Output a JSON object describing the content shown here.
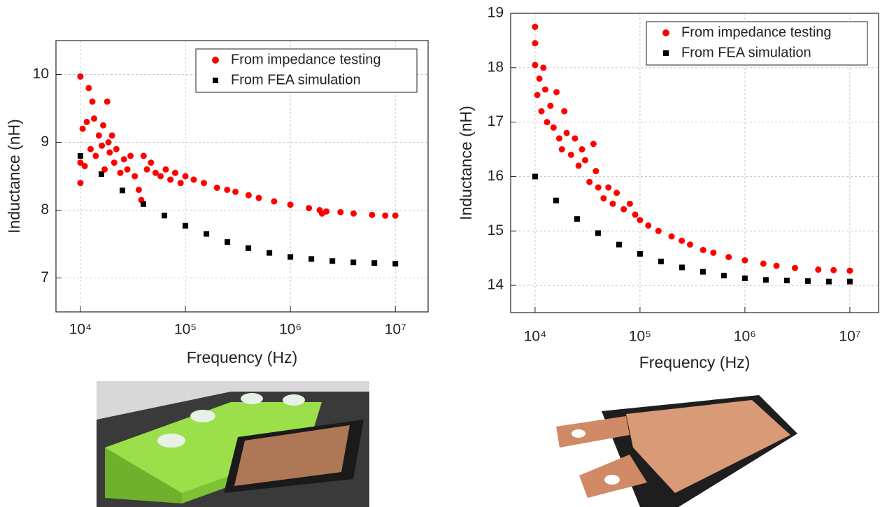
{
  "chart_data": [
    {
      "type": "scatter",
      "x_label": "Frequency (Hz)",
      "y_label": "Inductance (nH)",
      "xscale": "log",
      "xlim": [
        5850,
        20500000
      ],
      "xticks": [
        {
          "value": 10000,
          "label": "10⁴"
        },
        {
          "value": 100000,
          "label": "10⁵"
        },
        {
          "value": 1000000,
          "label": "10⁶"
        },
        {
          "value": 10000000,
          "label": "10⁷"
        }
      ],
      "ylim": [
        6.5,
        10.5
      ],
      "yticks": [
        7,
        8,
        9,
        10
      ],
      "grid": true,
      "legend": "upper right",
      "series": [
        {
          "name": "From impedance testing",
          "color": "#ff0000",
          "marker": "circle",
          "x": [
            10000,
            10000,
            10000,
            10500,
            11000,
            11500,
            12000,
            12500,
            13000,
            13500,
            14000,
            15000,
            16000,
            16500,
            17000,
            18000,
            18500,
            19000,
            20000,
            21000,
            22000,
            24000,
            26000,
            28000,
            30000,
            33000,
            36000,
            38000,
            40000,
            43000,
            47000,
            52000,
            58000,
            65000,
            72000,
            80000,
            90000,
            100000,
            120000,
            150000,
            200000,
            250000,
            300000,
            400000,
            500000,
            700000,
            1000000,
            1500000,
            1900000,
            2000000,
            2200000,
            3000000,
            4000000,
            6000000,
            8000000,
            10000000
          ],
          "values": [
            9.97,
            8.4,
            8.7,
            9.2,
            8.65,
            9.3,
            9.8,
            8.9,
            9.6,
            9.35,
            8.8,
            9.1,
            8.95,
            9.25,
            8.6,
            9.6,
            9.0,
            8.85,
            9.1,
            8.7,
            8.9,
            8.55,
            8.75,
            8.6,
            8.8,
            8.5,
            8.3,
            8.15,
            8.8,
            8.6,
            8.7,
            8.55,
            8.5,
            8.6,
            8.45,
            8.55,
            8.4,
            8.5,
            8.45,
            8.4,
            8.33,
            8.3,
            8.27,
            8.22,
            8.18,
            8.13,
            8.08,
            8.03,
            8.0,
            7.95,
            7.98,
            7.97,
            7.95,
            7.93,
            7.92,
            7.92
          ]
        },
        {
          "name": "From FEA simulation",
          "color": "#000000",
          "marker": "square",
          "x": [
            10000,
            15850,
            25120,
            39810,
            63100,
            100000,
            158500,
            251200,
            398100,
            631000,
            1000000,
            1585000,
            2512000,
            3981000,
            6310000,
            10000000
          ],
          "values": [
            8.8,
            8.53,
            8.29,
            8.09,
            7.92,
            7.77,
            7.65,
            7.53,
            7.44,
            7.37,
            7.31,
            7.28,
            7.25,
            7.23,
            7.22,
            7.21
          ]
        }
      ]
    },
    {
      "type": "scatter",
      "x_label": "Frequency (Hz)",
      "y_label": "Inductance (nH)",
      "xscale": "log",
      "xlim": [
        5850,
        18800000
      ],
      "xticks": [
        {
          "value": 10000,
          "label": "10⁴"
        },
        {
          "value": 100000,
          "label": "10⁵"
        },
        {
          "value": 1000000,
          "label": "10⁶"
        },
        {
          "value": 10000000,
          "label": "10⁷"
        }
      ],
      "ylim": [
        13.5,
        19
      ],
      "yticks": [
        14,
        15,
        16,
        17,
        18,
        19
      ],
      "grid": true,
      "legend": "upper right",
      "series": [
        {
          "name": "From impedance testing",
          "color": "#ff0000",
          "marker": "circle",
          "x": [
            10000,
            10000,
            10000,
            10500,
            11000,
            11500,
            12000,
            12500,
            13000,
            14000,
            15000,
            16000,
            17000,
            18000,
            19000,
            20000,
            22000,
            24000,
            26000,
            28000,
            30000,
            33000,
            36000,
            38000,
            40000,
            45000,
            50000,
            55000,
            60000,
            70000,
            80000,
            90000,
            100000,
            120000,
            150000,
            200000,
            250000,
            300000,
            400000,
            500000,
            700000,
            1000000,
            1500000,
            2000000,
            3000000,
            5000000,
            7000000,
            10000000
          ],
          "values": [
            18.75,
            18.45,
            18.05,
            17.5,
            17.8,
            17.2,
            18.0,
            17.6,
            17.0,
            17.3,
            16.9,
            17.55,
            16.7,
            16.5,
            17.2,
            16.8,
            16.4,
            16.7,
            16.2,
            16.5,
            16.3,
            15.9,
            16.6,
            16.1,
            15.8,
            15.6,
            15.8,
            15.5,
            15.7,
            15.4,
            15.5,
            15.3,
            15.2,
            15.1,
            15.0,
            14.9,
            14.82,
            14.75,
            14.65,
            14.6,
            14.52,
            14.46,
            14.4,
            14.36,
            14.32,
            14.29,
            14.28,
            14.27
          ]
        },
        {
          "name": "From FEA simulation",
          "color": "#000000",
          "marker": "square",
          "x": [
            10000,
            15850,
            25120,
            39810,
            63100,
            100000,
            158500,
            251200,
            398100,
            631000,
            1000000,
            1585000,
            2512000,
            3981000,
            6310000,
            10000000
          ],
          "values": [
            16.0,
            15.56,
            15.22,
            14.96,
            14.75,
            14.58,
            14.44,
            14.33,
            14.25,
            14.18,
            14.13,
            14.1,
            14.09,
            14.08,
            14.07,
            14.07
          ]
        }
      ]
    }
  ]
}
